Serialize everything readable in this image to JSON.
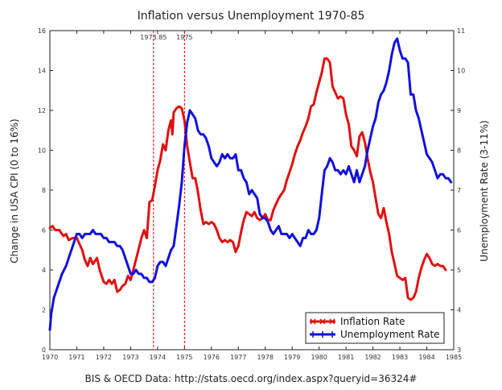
{
  "chart_data": {
    "type": "line",
    "title": "Inflation versus Unemployment 1970-85",
    "ylabel": "Change in USA CPI (0 to 16%)",
    "y2label": "Unemployment Rate (3-11%)",
    "source": "BIS & OECD Data: http://stats.oecd.org/index.aspx?queryid=36324#",
    "xlim": [
      1970,
      1985
    ],
    "ylim": [
      0,
      16
    ],
    "y2lim": [
      3,
      11
    ],
    "x_ticks": [
      "1970",
      "1971",
      "1972",
      "1973",
      "1974",
      "1975",
      "1976",
      "1977",
      "1978",
      "1979",
      "1980",
      "1981",
      "1982",
      "1983",
      "1984",
      "1985"
    ],
    "y_ticks": [
      "0",
      "2",
      "4",
      "6",
      "8",
      "10",
      "12",
      "14",
      "16"
    ],
    "y2_ticks": [
      "3",
      "4",
      "5",
      "6",
      "7",
      "8",
      "9",
      "10",
      "11"
    ],
    "grid": false,
    "legend_position": "bottom-right",
    "annotations": [
      {
        "label": "1973.85",
        "x": 1973.85
      },
      {
        "label": "1975",
        "x": 1975.0
      }
    ],
    "series": [
      {
        "name": "Inflation Rate",
        "axis": "left",
        "color": "#e01010",
        "marker": "x",
        "points": [
          [
            1970.0,
            6.1
          ],
          [
            1970.1,
            6.2
          ],
          [
            1970.2,
            6.0
          ],
          [
            1970.35,
            6.0
          ],
          [
            1970.5,
            5.7
          ],
          [
            1970.6,
            5.8
          ],
          [
            1970.7,
            5.5
          ],
          [
            1970.85,
            5.6
          ],
          [
            1971.0,
            5.6
          ],
          [
            1971.1,
            5.3
          ],
          [
            1971.2,
            5.0
          ],
          [
            1971.3,
            4.5
          ],
          [
            1971.4,
            4.2
          ],
          [
            1971.5,
            4.6
          ],
          [
            1971.6,
            4.3
          ],
          [
            1971.75,
            4.6
          ],
          [
            1971.85,
            4.0
          ],
          [
            1972.0,
            3.4
          ],
          [
            1972.1,
            3.3
          ],
          [
            1972.2,
            3.5
          ],
          [
            1972.3,
            3.3
          ],
          [
            1972.4,
            3.5
          ],
          [
            1972.5,
            2.9
          ],
          [
            1972.6,
            3.0
          ],
          [
            1972.7,
            3.2
          ],
          [
            1972.8,
            3.3
          ],
          [
            1972.9,
            3.7
          ],
          [
            1973.0,
            3.5
          ],
          [
            1973.1,
            4.0
          ],
          [
            1973.25,
            4.8
          ],
          [
            1973.4,
            5.6
          ],
          [
            1973.5,
            6.0
          ],
          [
            1973.6,
            5.6
          ],
          [
            1973.7,
            7.4
          ],
          [
            1973.8,
            7.5
          ],
          [
            1973.9,
            8.2
          ],
          [
            1974.0,
            9.0
          ],
          [
            1974.1,
            9.5
          ],
          [
            1974.2,
            10.3
          ],
          [
            1974.3,
            10.0
          ],
          [
            1974.4,
            11.0
          ],
          [
            1974.5,
            11.5
          ],
          [
            1974.55,
            10.8
          ],
          [
            1974.6,
            11.9
          ],
          [
            1974.7,
            12.1
          ],
          [
            1974.8,
            12.2
          ],
          [
            1974.9,
            12.1
          ],
          [
            1975.0,
            11.5
          ],
          [
            1975.1,
            10.2
          ],
          [
            1975.2,
            9.4
          ],
          [
            1975.3,
            8.6
          ],
          [
            1975.4,
            8.6
          ],
          [
            1975.5,
            7.9
          ],
          [
            1975.6,
            7.0
          ],
          [
            1975.7,
            6.3
          ],
          [
            1975.8,
            6.4
          ],
          [
            1975.9,
            6.3
          ],
          [
            1976.0,
            6.4
          ],
          [
            1976.1,
            6.3
          ],
          [
            1976.2,
            6.0
          ],
          [
            1976.3,
            5.6
          ],
          [
            1976.4,
            5.4
          ],
          [
            1976.5,
            5.5
          ],
          [
            1976.6,
            5.4
          ],
          [
            1976.7,
            5.5
          ],
          [
            1976.8,
            5.4
          ],
          [
            1976.9,
            4.9
          ],
          [
            1977.0,
            5.2
          ],
          [
            1977.1,
            5.9
          ],
          [
            1977.2,
            6.5
          ],
          [
            1977.3,
            6.9
          ],
          [
            1977.4,
            6.8
          ],
          [
            1977.5,
            6.7
          ],
          [
            1977.6,
            6.9
          ],
          [
            1977.7,
            6.6
          ],
          [
            1977.8,
            6.5
          ],
          [
            1977.9,
            6.6
          ],
          [
            1978.0,
            6.8
          ],
          [
            1978.1,
            6.5
          ],
          [
            1978.2,
            6.5
          ],
          [
            1978.3,
            7.0
          ],
          [
            1978.4,
            7.3
          ],
          [
            1978.5,
            7.6
          ],
          [
            1978.6,
            7.8
          ],
          [
            1978.7,
            8.0
          ],
          [
            1978.8,
            8.5
          ],
          [
            1978.9,
            8.9
          ],
          [
            1979.0,
            9.3
          ],
          [
            1979.1,
            9.8
          ],
          [
            1979.2,
            10.2
          ],
          [
            1979.3,
            10.5
          ],
          [
            1979.4,
            10.9
          ],
          [
            1979.5,
            11.2
          ],
          [
            1979.6,
            11.6
          ],
          [
            1979.7,
            12.2
          ],
          [
            1979.8,
            12.3
          ],
          [
            1979.9,
            12.9
          ],
          [
            1980.0,
            13.4
          ],
          [
            1980.1,
            13.9
          ],
          [
            1980.2,
            14.6
          ],
          [
            1980.3,
            14.6
          ],
          [
            1980.4,
            14.4
          ],
          [
            1980.5,
            13.2
          ],
          [
            1980.6,
            12.9
          ],
          [
            1980.7,
            12.6
          ],
          [
            1980.8,
            12.7
          ],
          [
            1980.9,
            12.6
          ],
          [
            1981.0,
            11.8
          ],
          [
            1981.1,
            11.3
          ],
          [
            1981.2,
            10.2
          ],
          [
            1981.3,
            10.0
          ],
          [
            1981.4,
            9.7
          ],
          [
            1981.5,
            10.7
          ],
          [
            1981.6,
            10.9
          ],
          [
            1981.7,
            10.4
          ],
          [
            1981.8,
            9.6
          ],
          [
            1981.9,
            8.9
          ],
          [
            1982.0,
            8.4
          ],
          [
            1982.1,
            7.6
          ],
          [
            1982.2,
            6.8
          ],
          [
            1982.3,
            6.6
          ],
          [
            1982.4,
            7.1
          ],
          [
            1982.5,
            6.4
          ],
          [
            1982.6,
            5.8
          ],
          [
            1982.7,
            4.9
          ],
          [
            1982.8,
            4.3
          ],
          [
            1982.9,
            3.7
          ],
          [
            1983.0,
            3.6
          ],
          [
            1983.1,
            3.5
          ],
          [
            1983.2,
            3.6
          ],
          [
            1983.3,
            2.6
          ],
          [
            1983.4,
            2.5
          ],
          [
            1983.5,
            2.6
          ],
          [
            1983.6,
            2.9
          ],
          [
            1983.7,
            3.6
          ],
          [
            1983.8,
            4.1
          ],
          [
            1983.9,
            4.5
          ],
          [
            1984.0,
            4.8
          ],
          [
            1984.1,
            4.6
          ],
          [
            1984.2,
            4.3
          ],
          [
            1984.3,
            4.2
          ],
          [
            1984.4,
            4.3
          ],
          [
            1984.5,
            4.2
          ],
          [
            1984.6,
            4.2
          ],
          [
            1984.7,
            4.0
          ]
        ]
      },
      {
        "name": "Unemployment Rate",
        "axis": "right",
        "color": "#1010dd",
        "marker": "+",
        "points": [
          [
            1970.0,
            3.5
          ],
          [
            1970.05,
            3.9
          ],
          [
            1970.15,
            4.3
          ],
          [
            1970.3,
            4.6
          ],
          [
            1970.45,
            4.9
          ],
          [
            1970.6,
            5.1
          ],
          [
            1970.75,
            5.4
          ],
          [
            1970.9,
            5.7
          ],
          [
            1971.0,
            5.9
          ],
          [
            1971.1,
            5.9
          ],
          [
            1971.2,
            5.8
          ],
          [
            1971.3,
            5.9
          ],
          [
            1971.4,
            5.9
          ],
          [
            1971.5,
            5.9
          ],
          [
            1971.6,
            6.0
          ],
          [
            1971.7,
            5.9
          ],
          [
            1971.8,
            5.9
          ],
          [
            1971.9,
            5.9
          ],
          [
            1972.0,
            5.8
          ],
          [
            1972.1,
            5.8
          ],
          [
            1972.2,
            5.7
          ],
          [
            1972.3,
            5.7
          ],
          [
            1972.4,
            5.7
          ],
          [
            1972.5,
            5.6
          ],
          [
            1972.6,
            5.6
          ],
          [
            1972.7,
            5.5
          ],
          [
            1972.8,
            5.3
          ],
          [
            1972.9,
            5.1
          ],
          [
            1973.0,
            4.9
          ],
          [
            1973.1,
            4.9
          ],
          [
            1973.2,
            5.0
          ],
          [
            1973.3,
            4.9
          ],
          [
            1973.4,
            4.9
          ],
          [
            1973.5,
            4.8
          ],
          [
            1973.6,
            4.8
          ],
          [
            1973.7,
            4.7
          ],
          [
            1973.8,
            4.7
          ],
          [
            1973.9,
            4.8
          ],
          [
            1974.0,
            5.1
          ],
          [
            1974.1,
            5.2
          ],
          [
            1974.2,
            5.2
          ],
          [
            1974.3,
            5.1
          ],
          [
            1974.4,
            5.3
          ],
          [
            1974.5,
            5.5
          ],
          [
            1974.6,
            5.6
          ],
          [
            1974.7,
            6.1
          ],
          [
            1974.8,
            6.6
          ],
          [
            1974.9,
            7.2
          ],
          [
            1975.0,
            8.1
          ],
          [
            1975.1,
            8.7
          ],
          [
            1975.2,
            9.0
          ],
          [
            1975.3,
            8.9
          ],
          [
            1975.4,
            8.8
          ],
          [
            1975.5,
            8.5
          ],
          [
            1975.6,
            8.4
          ],
          [
            1975.7,
            8.4
          ],
          [
            1975.8,
            8.3
          ],
          [
            1975.9,
            8.1
          ],
          [
            1976.0,
            7.8
          ],
          [
            1976.1,
            7.7
          ],
          [
            1976.2,
            7.6
          ],
          [
            1976.3,
            7.7
          ],
          [
            1976.4,
            7.9
          ],
          [
            1976.5,
            7.8
          ],
          [
            1976.6,
            7.9
          ],
          [
            1976.7,
            7.8
          ],
          [
            1976.8,
            7.8
          ],
          [
            1976.9,
            7.9
          ],
          [
            1977.0,
            7.5
          ],
          [
            1977.1,
            7.5
          ],
          [
            1977.2,
            7.3
          ],
          [
            1977.3,
            7.2
          ],
          [
            1977.4,
            6.9
          ],
          [
            1977.5,
            7.0
          ],
          [
            1977.6,
            6.9
          ],
          [
            1977.7,
            6.8
          ],
          [
            1977.8,
            6.4
          ],
          [
            1977.9,
            6.3
          ],
          [
            1978.0,
            6.3
          ],
          [
            1978.1,
            6.2
          ],
          [
            1978.2,
            6.0
          ],
          [
            1978.3,
            5.9
          ],
          [
            1978.4,
            6.0
          ],
          [
            1978.5,
            6.1
          ],
          [
            1978.6,
            5.9
          ],
          [
            1978.7,
            5.9
          ],
          [
            1978.8,
            5.9
          ],
          [
            1978.9,
            5.8
          ],
          [
            1979.0,
            5.9
          ],
          [
            1979.1,
            5.8
          ],
          [
            1979.2,
            5.7
          ],
          [
            1979.3,
            5.6
          ],
          [
            1979.4,
            5.8
          ],
          [
            1979.5,
            5.8
          ],
          [
            1979.6,
            6.0
          ],
          [
            1979.7,
            5.9
          ],
          [
            1979.8,
            5.9
          ],
          [
            1979.9,
            6.0
          ],
          [
            1980.0,
            6.3
          ],
          [
            1980.1,
            6.9
          ],
          [
            1980.2,
            7.5
          ],
          [
            1980.3,
            7.6
          ],
          [
            1980.4,
            7.8
          ],
          [
            1980.5,
            7.7
          ],
          [
            1980.6,
            7.5
          ],
          [
            1980.7,
            7.5
          ],
          [
            1980.8,
            7.4
          ],
          [
            1980.9,
            7.5
          ],
          [
            1981.0,
            7.4
          ],
          [
            1981.1,
            7.6
          ],
          [
            1981.2,
            7.4
          ],
          [
            1981.3,
            7.2
          ],
          [
            1981.4,
            7.5
          ],
          [
            1981.5,
            7.2
          ],
          [
            1981.6,
            7.4
          ],
          [
            1981.7,
            7.6
          ],
          [
            1981.8,
            8.0
          ],
          [
            1981.9,
            8.3
          ],
          [
            1982.0,
            8.6
          ],
          [
            1982.1,
            8.8
          ],
          [
            1982.2,
            9.2
          ],
          [
            1982.3,
            9.4
          ],
          [
            1982.4,
            9.5
          ],
          [
            1982.5,
            9.7
          ],
          [
            1982.6,
            10.0
          ],
          [
            1982.7,
            10.4
          ],
          [
            1982.8,
            10.7
          ],
          [
            1982.9,
            10.8
          ],
          [
            1983.0,
            10.5
          ],
          [
            1983.1,
            10.3
          ],
          [
            1983.2,
            10.3
          ],
          [
            1983.3,
            10.2
          ],
          [
            1983.4,
            9.4
          ],
          [
            1983.5,
            9.4
          ],
          [
            1983.6,
            9.0
          ],
          [
            1983.7,
            8.8
          ],
          [
            1983.8,
            8.5
          ],
          [
            1983.9,
            8.2
          ],
          [
            1984.0,
            7.9
          ],
          [
            1984.1,
            7.8
          ],
          [
            1984.2,
            7.7
          ],
          [
            1984.3,
            7.5
          ],
          [
            1984.4,
            7.3
          ],
          [
            1984.5,
            7.4
          ],
          [
            1984.6,
            7.4
          ],
          [
            1984.7,
            7.3
          ],
          [
            1984.8,
            7.3
          ],
          [
            1984.9,
            7.2
          ]
        ]
      }
    ]
  }
}
